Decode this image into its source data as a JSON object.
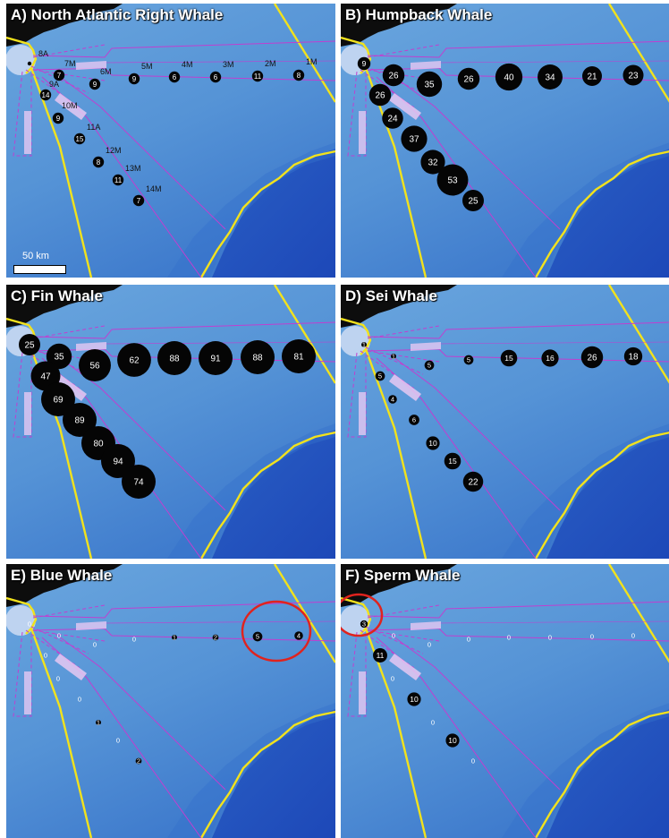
{
  "colors": {
    "water_light": "#6aa6de",
    "water_deep": "#1d48b8",
    "land": "#0d0d0d",
    "shelf_line": "#f2e21c",
    "corridor_line": "#c03fd0",
    "corridor_fill": "#e6c8f2",
    "circle_fill": "#050505",
    "label_white": "#ffffff",
    "highlight_ring": "#e0231e"
  },
  "map_labels": {
    "scale_bar": "50 km"
  },
  "panels": [
    {
      "id": "A",
      "title": "A) North Atlantic Right Whale",
      "show_scale_bar": true,
      "sites": [
        {
          "label": "8A",
          "count": 0
        },
        {
          "label": "7M",
          "count": 7
        },
        {
          "label": "6M",
          "count": 9
        },
        {
          "label": "5M",
          "count": 9
        },
        {
          "label": "4M",
          "count": 6
        },
        {
          "label": "3M",
          "count": 6
        },
        {
          "label": "2M",
          "count": 11
        },
        {
          "label": "1M",
          "count": 8
        },
        {
          "label": "9A",
          "count": 14
        },
        {
          "label": "10M",
          "count": 9
        },
        {
          "label": "11A",
          "count": 15
        },
        {
          "label": "12M",
          "count": 8
        },
        {
          "label": "13M",
          "count": 11
        },
        {
          "label": "14M",
          "count": 7
        }
      ]
    },
    {
      "id": "B",
      "title": "B) Humpback Whale",
      "values": [
        9,
        26,
        35,
        26,
        40,
        34,
        21,
        23,
        26,
        24,
        37,
        32,
        53,
        25
      ]
    },
    {
      "id": "C",
      "title": "C) Fin Whale",
      "values": [
        25,
        35,
        56,
        62,
        88,
        91,
        88,
        81,
        47,
        69,
        89,
        80,
        94,
        74
      ]
    },
    {
      "id": "D",
      "title": "D) Sei Whale",
      "values": [
        1,
        1,
        5,
        5,
        15,
        16,
        26,
        18,
        5,
        4,
        6,
        10,
        15,
        22
      ]
    },
    {
      "id": "E",
      "title": "E) Blue Whale",
      "values": [
        0,
        0,
        0,
        0,
        1,
        2,
        5,
        4,
        0,
        0,
        0,
        1,
        0,
        2
      ],
      "highlight": "far-east-shelf-edge-sites"
    },
    {
      "id": "F",
      "title": "F) Sperm Whale",
      "values": [
        3,
        0,
        0,
        0,
        0,
        0,
        0,
        0,
        11,
        0,
        10,
        0,
        10,
        0
      ],
      "highlight": "nearshore-site"
    }
  ]
}
